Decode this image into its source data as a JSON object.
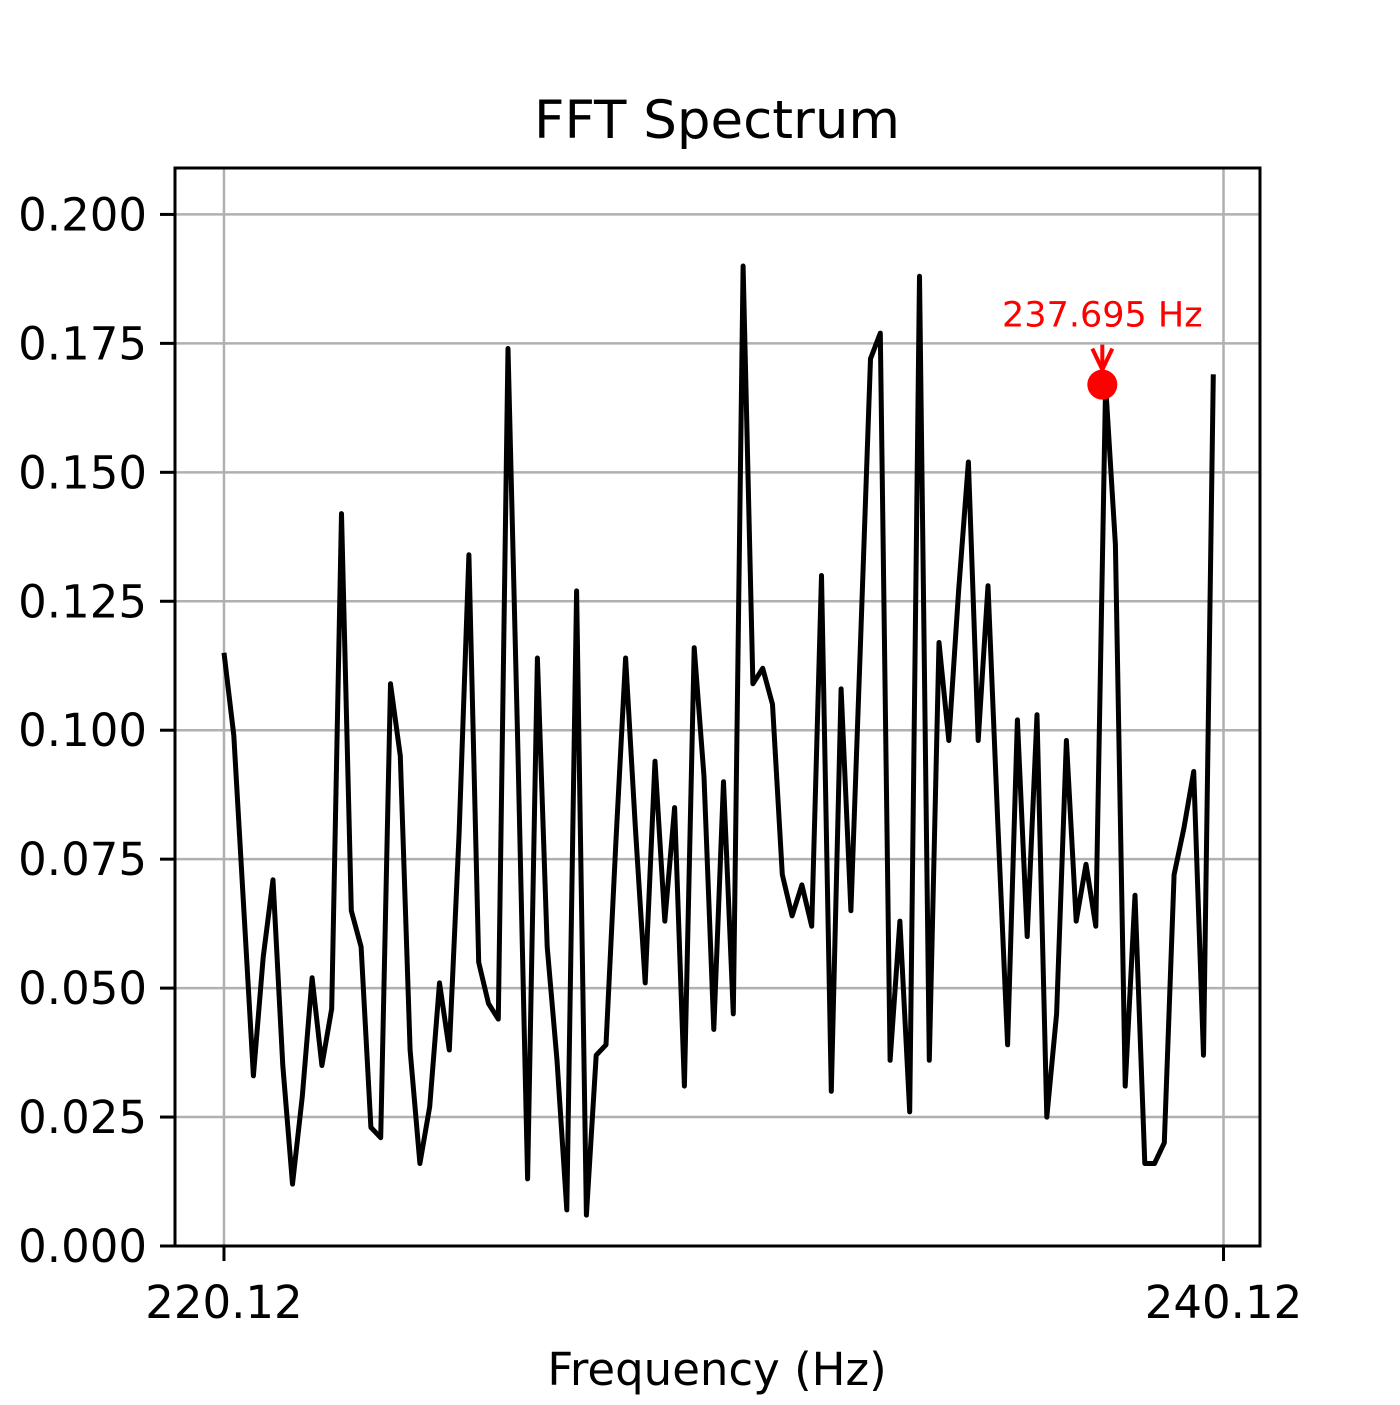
{
  "chart_data": {
    "type": "line",
    "title": "FFT Spectrum",
    "xlabel": "Frequency (Hz)",
    "ylabel": "",
    "xlim": [
      219.14,
      240.85
    ],
    "ylim": [
      0.0,
      0.209
    ],
    "xticks": [
      220.12,
      240.12
    ],
    "xtick_labels": [
      "220.12",
      "240.12"
    ],
    "yticks": [
      0.0,
      0.025,
      0.05,
      0.075,
      0.1,
      0.125,
      0.15,
      0.175,
      0.2
    ],
    "ytick_labels": [
      "0.000",
      "0.025",
      "0.050",
      "0.075",
      "0.100",
      "0.125",
      "0.150",
      "0.175",
      "0.200"
    ],
    "grid": true,
    "series": [
      {
        "name": "",
        "color": "#000000",
        "x": [
          220.12,
          220.316,
          220.512,
          220.708,
          220.904,
          221.1,
          221.296,
          221.492,
          221.688,
          221.884,
          222.08,
          222.276,
          222.472,
          222.668,
          222.864,
          223.06,
          223.256,
          223.452,
          223.648,
          223.844,
          224.04,
          224.236,
          224.432,
          224.628,
          224.824,
          225.02,
          225.216,
          225.412,
          225.608,
          225.804,
          226.0,
          226.196,
          226.392,
          226.588,
          226.784,
          226.98,
          227.176,
          227.372,
          227.568,
          227.764,
          227.96,
          228.156,
          228.352,
          228.548,
          228.744,
          228.94,
          229.136,
          229.332,
          229.528,
          229.724,
          229.92,
          230.116,
          230.312,
          230.508,
          230.704,
          230.9,
          231.096,
          231.292,
          231.488,
          231.684,
          231.88,
          232.076,
          232.272,
          232.468,
          232.664,
          232.86,
          233.056,
          233.252,
          233.448,
          233.644,
          233.84,
          234.036,
          234.232,
          234.428,
          234.624,
          234.82,
          235.016,
          235.212,
          235.408,
          235.604,
          235.8,
          235.996,
          236.192,
          236.388,
          236.584,
          236.78,
          236.976,
          237.172,
          237.368,
          237.564,
          237.76,
          237.956,
          238.152,
          238.348,
          238.544,
          238.74,
          238.936,
          239.132,
          239.328,
          239.524,
          239.72,
          239.916
        ],
        "values": [
          0.115,
          0.099,
          0.066,
          0.033,
          0.056,
          0.071,
          0.035,
          0.012,
          0.029,
          0.052,
          0.035,
          0.046,
          0.142,
          0.065,
          0.058,
          0.023,
          0.021,
          0.109,
          0.095,
          0.038,
          0.016,
          0.027,
          0.051,
          0.038,
          0.08,
          0.134,
          0.055,
          0.047,
          0.044,
          0.174,
          0.097,
          0.013,
          0.114,
          0.058,
          0.036,
          0.007,
          0.127,
          0.006,
          0.037,
          0.039,
          0.078,
          0.114,
          0.081,
          0.051,
          0.094,
          0.063,
          0.085,
          0.031,
          0.116,
          0.091,
          0.042,
          0.09,
          0.045,
          0.19,
          0.109,
          0.112,
          0.105,
          0.072,
          0.064,
          0.07,
          0.062,
          0.13,
          0.03,
          0.108,
          0.065,
          0.118,
          0.172,
          0.177,
          0.036,
          0.063,
          0.026,
          0.188,
          0.036,
          0.117,
          0.098,
          0.127,
          0.152,
          0.098,
          0.128,
          0.082,
          0.039,
          0.102,
          0.06,
          0.103,
          0.025,
          0.045,
          0.098,
          0.063,
          0.074,
          0.062,
          0.167,
          0.136,
          0.031,
          0.068,
          0.016,
          0.016,
          0.02,
          0.072,
          0.081,
          0.092,
          0.037,
          0.169
        ]
      }
    ],
    "annotation": {
      "text": "237.695 Hz",
      "x": 237.695,
      "y": 0.167,
      "color": "#ff0000"
    }
  }
}
